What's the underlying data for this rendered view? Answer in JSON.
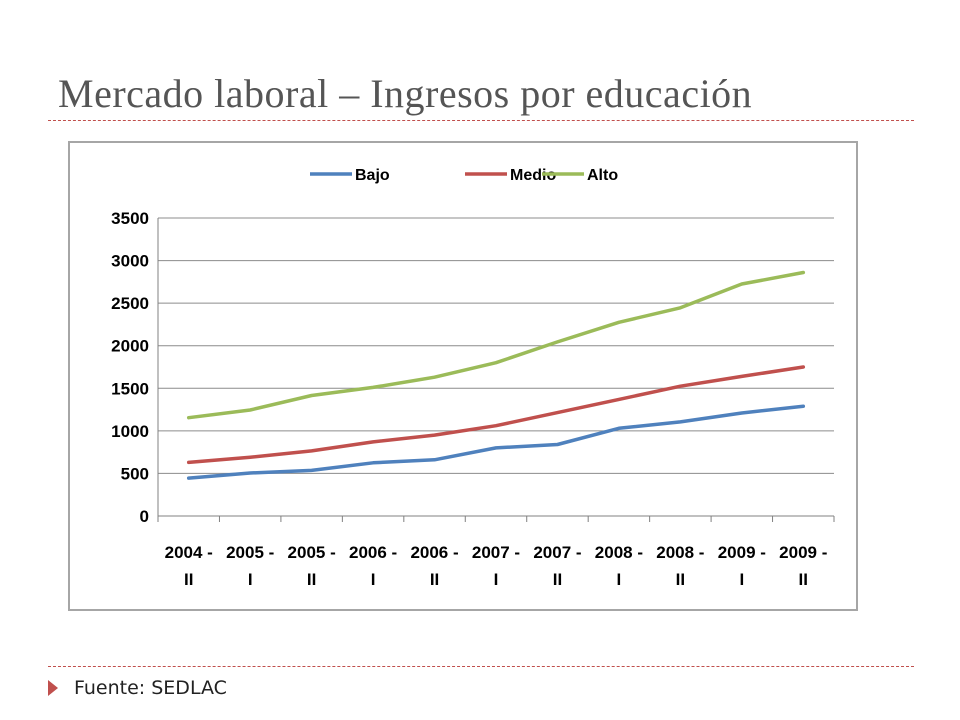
{
  "slide": {
    "title": "Mercado laboral – Ingresos por educación",
    "footer": "Fuente: SEDLAC"
  },
  "chart_data": {
    "type": "line",
    "title": "",
    "xlabel": "",
    "ylabel": "",
    "ylim": [
      0,
      3500
    ],
    "yticks": [
      0,
      500,
      1000,
      1500,
      2000,
      2500,
      3000,
      3500
    ],
    "grid": true,
    "legend_position": "top",
    "categories": [
      [
        "2004 -",
        "II"
      ],
      [
        "2005 -",
        "I"
      ],
      [
        "2005 -",
        "II"
      ],
      [
        "2006 -",
        "I"
      ],
      [
        "2006 -",
        "II"
      ],
      [
        "2007 -",
        "I"
      ],
      [
        "2007 -",
        "II"
      ],
      [
        "2008 -",
        "I"
      ],
      [
        "2008 -",
        "II"
      ],
      [
        "2009 -",
        "I"
      ],
      [
        "2009 -",
        "II"
      ]
    ],
    "series": [
      {
        "name": "Bajo",
        "color": "#4f81bd",
        "values": [
          445,
          505,
          535,
          625,
          660,
          800,
          840,
          1030,
          1105,
          1210,
          1290
        ]
      },
      {
        "name": "Medio",
        "color": "#c0504d",
        "values": [
          630,
          690,
          765,
          870,
          950,
          1060,
          1215,
          1370,
          1525,
          1640,
          1750
        ]
      },
      {
        "name": "Alto",
        "color": "#9bbb59",
        "values": [
          1155,
          1245,
          1415,
          1510,
          1630,
          1800,
          2045,
          2275,
          2445,
          2725,
          2860
        ]
      }
    ]
  }
}
